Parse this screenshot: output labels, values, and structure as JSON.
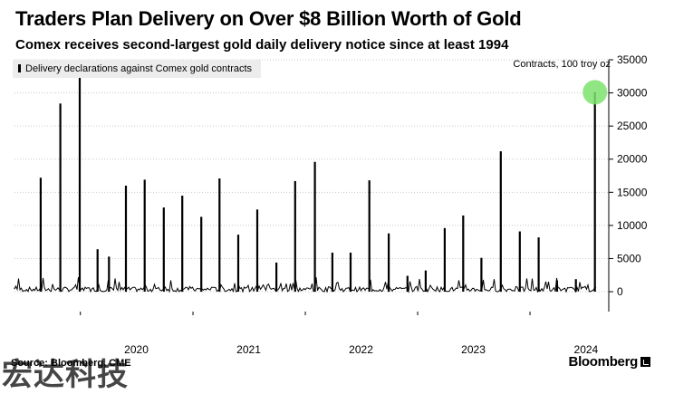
{
  "header": {
    "title": "Traders Plan Delivery on Over $8 Billion Worth of Gold",
    "subtitle": "Comex receives second-largest gold daily delivery notice since at least 1994"
  },
  "legend": {
    "label": "Delivery declarations against Comex gold contracts"
  },
  "unit_label": "Contracts, 100 troy oz",
  "footer": {
    "source": "Source: Bloomberg, CME",
    "brand": "Bloomberg"
  },
  "watermark": "宏达科技",
  "colors": {
    "series": "#000000",
    "highlight": "#7ee26f",
    "gridline": "#c8c8c8",
    "legend_bg": "#ececec"
  },
  "chart_data": {
    "type": "bar",
    "title": "Traders Plan Delivery on Over $8 Billion Worth of Gold",
    "subtitle": "Comex receives second-largest gold daily delivery notice since at least 1994",
    "series": [
      {
        "name": "Delivery declarations against Comex gold contracts",
        "points": [
          {
            "x": "2019-08-25",
            "y": 17200
          },
          {
            "x": "2019-10-28",
            "y": 28400
          },
          {
            "x": "2019-12-30",
            "y": 32700
          },
          {
            "x": "2020-02-26",
            "y": 6400
          },
          {
            "x": "2020-04-03",
            "y": 5300
          },
          {
            "x": "2020-05-28",
            "y": 16000
          },
          {
            "x": "2020-07-28",
            "y": 16900
          },
          {
            "x": "2020-09-28",
            "y": 12700
          },
          {
            "x": "2020-11-27",
            "y": 14500
          },
          {
            "x": "2021-01-28",
            "y": 11300
          },
          {
            "x": "2021-03-28",
            "y": 17100
          },
          {
            "x": "2021-05-28",
            "y": 8600
          },
          {
            "x": "2021-07-29",
            "y": 12400
          },
          {
            "x": "2021-09-29",
            "y": 4400
          },
          {
            "x": "2021-11-29",
            "y": 16700
          },
          {
            "x": "2022-02-01",
            "y": 19600
          },
          {
            "x": "2022-03-30",
            "y": 5900
          },
          {
            "x": "2022-05-28",
            "y": 5900
          },
          {
            "x": "2022-07-28",
            "y": 16800
          },
          {
            "x": "2022-09-29",
            "y": 8800
          },
          {
            "x": "2022-11-29",
            "y": 2400
          },
          {
            "x": "2023-01-27",
            "y": 3200
          },
          {
            "x": "2023-03-30",
            "y": 9600
          },
          {
            "x": "2023-05-29",
            "y": 11500
          },
          {
            "x": "2023-07-27",
            "y": 5100
          },
          {
            "x": "2023-09-28",
            "y": 21200
          },
          {
            "x": "2023-11-29",
            "y": 9100
          },
          {
            "x": "2024-01-29",
            "y": 8200
          },
          {
            "x": "2024-03-29",
            "y": 1700
          },
          {
            "x": "2024-05-29",
            "y": 1900
          },
          {
            "x": "2024-07-30",
            "y": 30100
          }
        ]
      }
    ],
    "highlight_point": {
      "x": "2024-07-30",
      "y": 30100
    },
    "x_ticks": [
      "2020",
      "2021",
      "2022",
      "2023",
      "2024"
    ],
    "y_ticks": [
      0,
      5000,
      10000,
      15000,
      20000,
      25000,
      30000,
      35000
    ],
    "xlim": [
      "2019-06-01",
      "2024-09-10"
    ],
    "ylim": [
      -3000,
      35000
    ],
    "grid": "horizontal",
    "y_axis_side": "right",
    "legend_position": "top-left"
  }
}
